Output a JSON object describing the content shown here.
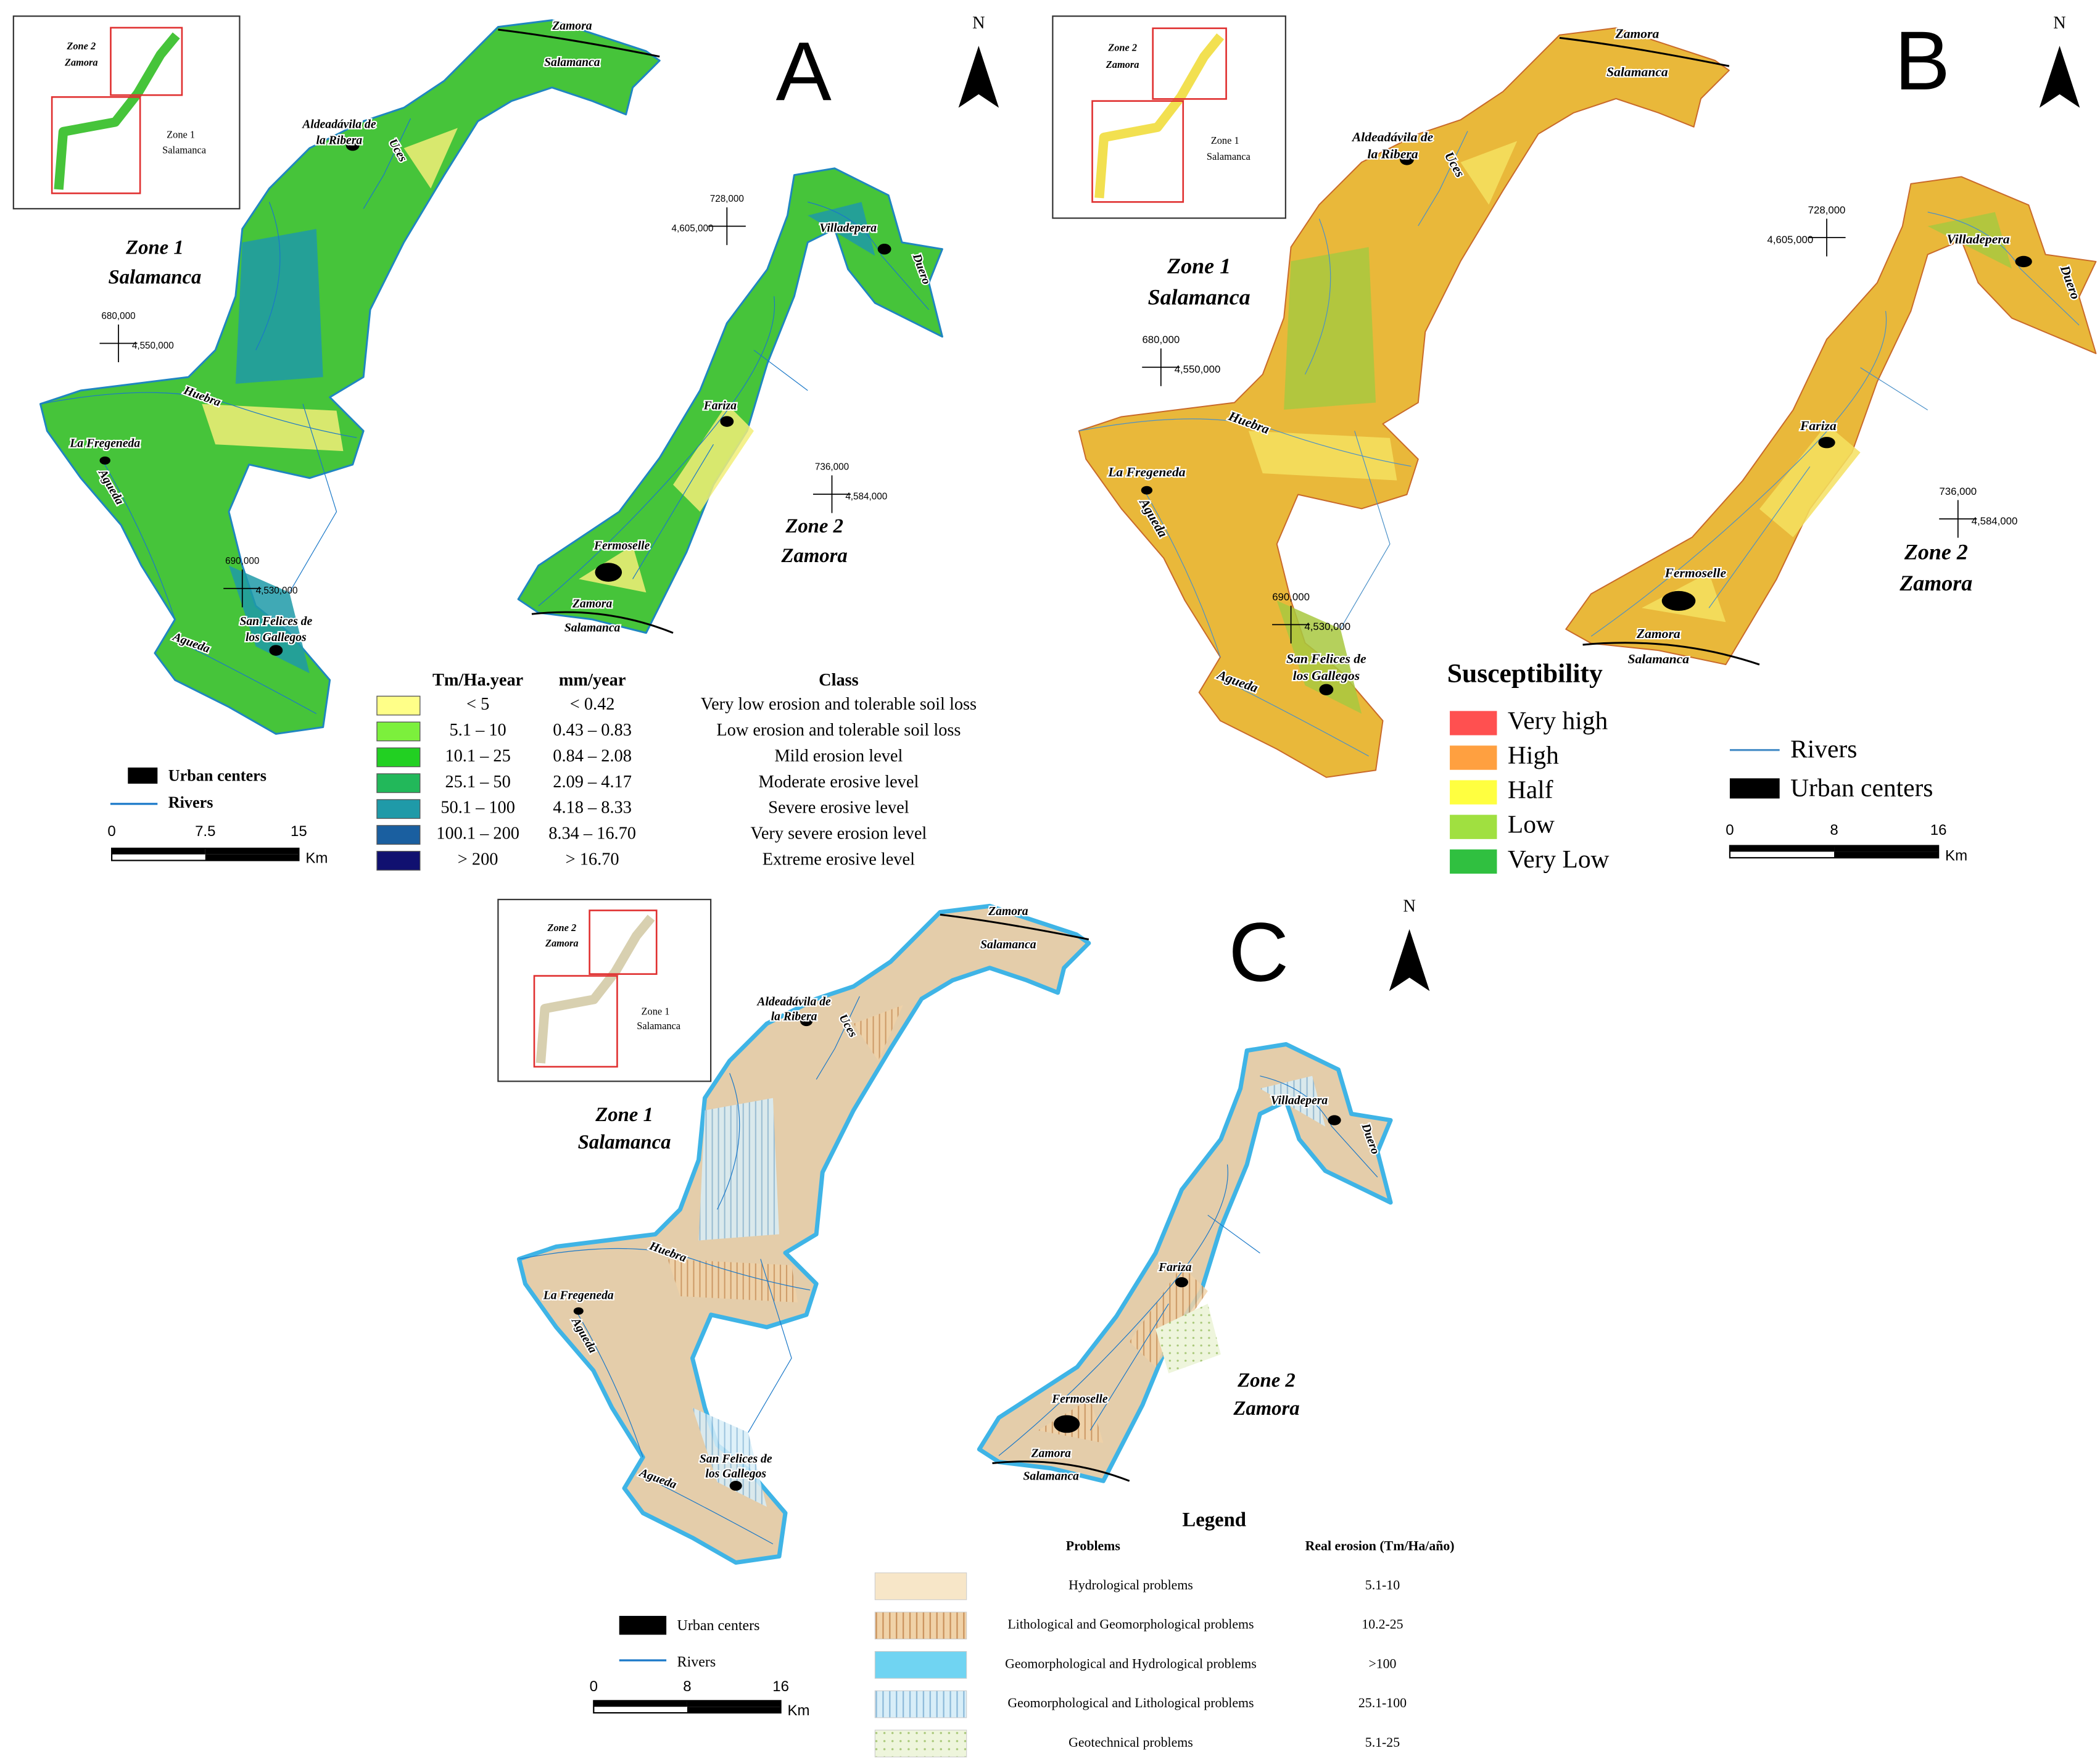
{
  "panels": [
    {
      "letter": "A",
      "north": "N",
      "inset": [
        "Zone 2",
        "Zamora",
        "Zone 1",
        "Salamanca"
      ],
      "places": [
        "Zamora",
        "Salamanca",
        "Aldeadávila de",
        "la Ribera",
        "Uces",
        "Zone 1",
        "Salamanca",
        "Huebra",
        "La Fregeneda",
        "Agueda",
        "Agueda",
        "San Felices de",
        "los Gallegos",
        "Villadepera",
        "Duero",
        "Fariza",
        "Zone 2",
        "Zamora",
        "Fermoselle",
        "Zamora",
        "Salamanca"
      ],
      "coordinates": [
        "680,000",
        "4,550,000",
        "690,000",
        "4,530,000",
        "728,000",
        "4,605,000",
        "736,000",
        "4,584,000"
      ],
      "legend": {
        "urban": "Urban centers",
        "rivers": "Rivers",
        "scale": [
          0,
          7.5,
          15
        ],
        "unit": "Km",
        "table": {
          "header": [
            "Tm/Ha.year",
            "mm/year",
            "Class"
          ],
          "rows": [
            [
              "< 5",
              "< 0.42",
              "Very low erosion and tolerable soil loss"
            ],
            [
              "5.1 – 10",
              "0.43 – 0.83",
              "Low erosion and tolerable soil loss"
            ],
            [
              "10.1 – 25",
              "0.84 – 2.08",
              "Mild erosion level"
            ],
            [
              "25.1 – 50",
              "2.09 – 4.17",
              "Moderate erosive level"
            ],
            [
              "50.1 – 100",
              "4.18 – 8.33",
              "Severe erosive level"
            ],
            [
              "100.1 – 200",
              "8.34 – 16.70",
              "Very severe erosion level"
            ],
            [
              "> 200",
              "> 16.70",
              "Extreme erosive level"
            ]
          ]
        }
      }
    },
    {
      "letter": "B",
      "north": "N",
      "inset": [
        "Zone 2",
        "Zamora",
        "Zone 1",
        "Salamanca"
      ],
      "places": [
        "Zamora",
        "Salamanca",
        "Aldeadávila de",
        "la Ribera",
        "Uces",
        "Zone 1",
        "Salamanca",
        "Huebra",
        "La Fregeneda",
        "Agueda",
        "Agueda",
        "San Felices de",
        "los Gallegos",
        "Villadepera",
        "Duero",
        "Fariza",
        "Zone 2",
        "Zamora",
        "Fermoselle",
        "Zamora",
        "Salamanca"
      ],
      "coordinates": [
        "680,000",
        "4,550,000",
        "690,000",
        "4,530,000",
        "728,000",
        "4,605,000",
        "736,000",
        "4,584,000"
      ],
      "legend": {
        "title": "Susceptibility",
        "classes": [
          "Very high",
          "High",
          "Half",
          "Low",
          "Very Low"
        ],
        "rivers": "Rivers",
        "urban": "Urban centers",
        "scale": [
          0,
          8,
          16
        ],
        "unit": "Km"
      }
    },
    {
      "letter": "C",
      "north": "N",
      "inset": [
        "Zone 2",
        "Zamora",
        "Zone 1",
        "Salamanca"
      ],
      "places": [
        "Zamora",
        "Salamanca",
        "Aldeadávila de",
        "la Ribera",
        "Uces",
        "Zone 1",
        "Salamanca",
        "Huebra",
        "La Fregeneda",
        "Agueda",
        "Agueda",
        "San Felices de",
        "los Gallegos",
        "Villadepera",
        "Duero",
        "Fariza",
        "Zone 2",
        "Zamora",
        "Fermoselle",
        "Zamora",
        "Salamanca"
      ],
      "legend": {
        "title": "Legend",
        "header": [
          "Problems",
          "Real erosion (Tm/Ha/año)"
        ],
        "rows": [
          [
            "Hydrological problems",
            "5.1-10"
          ],
          [
            "Lithological and Geomorphological problems",
            "10.2-25"
          ],
          [
            "Geomorphological and Hydrological problems",
            ">100"
          ],
          [
            "Geomorphological and Lithological problems",
            "25.1-100"
          ],
          [
            "Geotechnical problems",
            "5.1-25"
          ]
        ],
        "urban": "Urban centers",
        "rivers": "Rivers",
        "scale": [
          0,
          8,
          16
        ],
        "unit": "Km"
      }
    }
  ]
}
